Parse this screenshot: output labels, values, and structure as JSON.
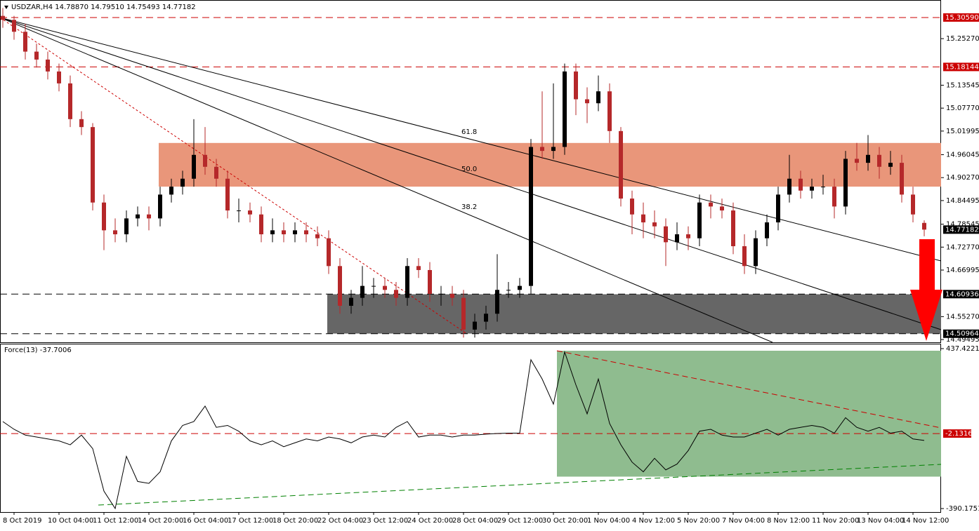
{
  "chart_data": {
    "type": "candlestick",
    "title": "USDZAR,H4  14.78870 14.79510 14.75493 14.77182",
    "colors": {
      "up": "#000000",
      "down": "#b5282a"
    },
    "ylim": [
      14.488,
      15.35
    ],
    "yticks": [
      {
        "value": 15.2527,
        "label": "15.25270"
      },
      15.13545,
      {
        "value": 15.0777,
        "label": "15.07770"
      },
      15.01995,
      14.96045,
      {
        "value": 14.9027,
        "label": "14.90270"
      },
      14.84495,
      14.78545,
      {
        "value": 14.7277,
        "label": "14.72770"
      },
      14.66995,
      {
        "value": 14.5527,
        "label": "14.55270"
      },
      14.49495
    ],
    "levels": [
      {
        "value": 15.3059,
        "label": "15.30590",
        "color": "#cc0000",
        "line": true
      },
      {
        "value": 15.18144,
        "label": "15.18144",
        "color": "#cc0000",
        "line": true
      },
      {
        "value": 14.77182,
        "label": "14.77182",
        "color": "#000000",
        "line": false
      },
      {
        "value": 14.60936,
        "label": "14.60936",
        "color": "#000000",
        "line": true
      },
      {
        "value": 14.50964,
        "label": "14.50964",
        "color": "#000000",
        "line": true
      }
    ],
    "zones": [
      {
        "from": 14.88,
        "to": 14.99,
        "color": "#e9967a"
      },
      {
        "from": 14.51,
        "to": 14.609,
        "color": "#666666"
      }
    ],
    "fib_labels": [
      "61.8",
      "50.0",
      "38.2"
    ],
    "categories": [
      null,
      "8 Oct 2019",
      null,
      null,
      null,
      "10 Oct 04:00",
      null,
      null,
      null,
      "11 Oct 12:00",
      null,
      null,
      null,
      "14 Oct 20:00",
      null,
      null,
      null,
      "16 Oct 04:00",
      null,
      null,
      null,
      "17 Oct 12:00",
      null,
      null,
      null,
      "18 Oct 20:00",
      null,
      null,
      null,
      "22 Oct 04:00",
      null,
      null,
      null,
      "23 Oct 12:00",
      null,
      null,
      null,
      "24 Oct 20:00",
      null,
      null,
      null,
      "28 Oct 04:00",
      null,
      null,
      null,
      "29 Oct 12:00",
      null,
      null,
      null,
      "30 Oct 20:00",
      null,
      null,
      null,
      "1 Nov 04:00",
      null,
      null,
      null,
      "4 Nov 12:00",
      null,
      null,
      null,
      "5 Nov 20:00",
      null,
      null,
      null,
      "7 Nov 04:00",
      null,
      null,
      null,
      "8 Nov 12:00",
      null,
      null,
      null,
      "11 Nov 20:00",
      null,
      null,
      null,
      "13 Nov 04:00",
      null,
      null,
      null,
      "14 Nov 12:00",
      null
    ],
    "candles": [
      [
        15.31,
        15.33,
        15.28,
        15.3
      ],
      [
        15.3,
        15.31,
        15.25,
        15.27
      ],
      [
        15.27,
        15.29,
        15.2,
        15.22
      ],
      [
        15.22,
        15.24,
        15.18,
        15.2
      ],
      [
        15.2,
        15.22,
        15.15,
        15.17
      ],
      [
        15.17,
        15.19,
        15.12,
        15.14
      ],
      [
        15.14,
        15.16,
        15.03,
        15.05
      ],
      [
        15.05,
        15.07,
        15.01,
        15.03
      ],
      [
        15.03,
        15.04,
        14.82,
        14.84
      ],
      [
        14.84,
        14.86,
        14.72,
        14.77
      ],
      [
        14.77,
        14.8,
        14.74,
        14.76
      ],
      [
        14.76,
        14.82,
        14.74,
        14.8
      ],
      [
        14.8,
        14.83,
        14.78,
        14.81
      ],
      [
        14.81,
        14.83,
        14.77,
        14.8
      ],
      [
        14.8,
        14.88,
        14.78,
        14.86
      ],
      [
        14.86,
        14.9,
        14.84,
        14.88
      ],
      [
        14.88,
        14.92,
        14.86,
        14.9
      ],
      [
        14.9,
        15.05,
        14.88,
        14.96
      ],
      [
        14.96,
        15.03,
        14.91,
        14.93
      ],
      [
        14.93,
        14.95,
        14.88,
        14.9
      ],
      [
        14.9,
        14.92,
        14.8,
        14.82
      ],
      [
        14.82,
        14.85,
        14.79,
        14.82
      ],
      [
        14.82,
        14.84,
        14.79,
        14.81
      ],
      [
        14.81,
        14.83,
        14.74,
        14.76
      ],
      [
        14.76,
        14.8,
        14.74,
        14.77
      ],
      [
        14.77,
        14.79,
        14.74,
        14.76
      ],
      [
        14.76,
        14.79,
        14.74,
        14.77
      ],
      [
        14.77,
        14.79,
        14.74,
        14.76
      ],
      [
        14.76,
        14.78,
        14.73,
        14.75
      ],
      [
        14.75,
        14.77,
        14.66,
        14.68
      ],
      [
        14.68,
        14.7,
        14.56,
        14.58
      ],
      [
        14.58,
        14.62,
        14.56,
        14.6
      ],
      [
        14.6,
        14.68,
        14.58,
        14.63
      ],
      [
        14.63,
        14.65,
        14.6,
        14.63
      ],
      [
        14.63,
        14.65,
        14.6,
        14.62
      ],
      [
        14.62,
        14.64,
        14.58,
        14.6
      ],
      [
        14.6,
        14.7,
        14.58,
        14.68
      ],
      [
        14.68,
        14.7,
        14.65,
        14.67
      ],
      [
        14.67,
        14.69,
        14.59,
        14.61
      ],
      [
        14.61,
        14.63,
        14.58,
        14.61
      ],
      [
        14.61,
        14.63,
        14.58,
        14.6
      ],
      [
        14.6,
        14.62,
        14.5,
        14.52
      ],
      [
        14.52,
        14.56,
        14.5,
        14.54
      ],
      [
        14.54,
        14.58,
        14.52,
        14.56
      ],
      [
        14.56,
        14.71,
        14.54,
        14.62
      ],
      [
        14.62,
        14.64,
        14.6,
        14.62
      ],
      [
        14.62,
        14.65,
        14.6,
        14.63
      ],
      [
        14.63,
        15.0,
        14.61,
        14.98
      ],
      [
        14.98,
        15.12,
        14.95,
        14.97
      ],
      [
        14.97,
        15.14,
        14.95,
        14.98
      ],
      [
        14.98,
        15.19,
        14.96,
        15.17
      ],
      [
        15.17,
        15.19,
        15.06,
        15.1
      ],
      [
        15.1,
        15.13,
        15.04,
        15.09
      ],
      [
        15.09,
        15.16,
        15.07,
        15.12
      ],
      [
        15.12,
        15.14,
        14.99,
        15.02
      ],
      [
        15.02,
        15.03,
        14.83,
        14.85
      ],
      [
        14.85,
        14.87,
        14.76,
        14.81
      ],
      [
        14.81,
        14.84,
        14.75,
        14.79
      ],
      [
        14.79,
        14.82,
        14.75,
        14.78
      ],
      [
        14.78,
        14.8,
        14.68,
        14.74
      ],
      [
        14.74,
        14.79,
        14.72,
        14.76
      ],
      [
        14.76,
        14.78,
        14.72,
        14.75
      ],
      [
        14.75,
        14.86,
        14.73,
        14.84
      ],
      [
        14.84,
        14.86,
        14.8,
        14.83
      ],
      [
        14.83,
        14.85,
        14.8,
        14.82
      ],
      [
        14.82,
        14.84,
        14.71,
        14.73
      ],
      [
        14.73,
        14.76,
        14.66,
        14.68
      ],
      [
        14.68,
        14.77,
        14.66,
        14.75
      ],
      [
        14.75,
        14.81,
        14.73,
        14.79
      ],
      [
        14.79,
        14.88,
        14.77,
        14.86
      ],
      [
        14.86,
        14.96,
        14.84,
        14.9
      ],
      [
        14.9,
        14.92,
        14.85,
        14.87
      ],
      [
        14.87,
        14.9,
        14.85,
        14.88
      ],
      [
        14.88,
        14.91,
        14.86,
        14.88
      ],
      [
        14.88,
        14.9,
        14.8,
        14.83
      ],
      [
        14.83,
        14.97,
        14.81,
        14.95
      ],
      [
        14.95,
        14.99,
        14.92,
        14.94
      ],
      [
        14.94,
        15.01,
        14.92,
        14.96
      ],
      [
        14.96,
        14.98,
        14.9,
        14.93
      ],
      [
        14.93,
        14.97,
        14.91,
        14.94
      ],
      [
        14.94,
        14.96,
        14.84,
        14.86
      ],
      [
        14.86,
        14.88,
        14.79,
        14.81
      ],
      [
        14.7887,
        14.7951,
        14.75493,
        14.77182
      ]
    ],
    "indicator": {
      "title": "Force(13) -37.7006",
      "color": "#000000",
      "ylim": [
        -390.1751,
        437.4221
      ],
      "yticks": [
        437.4221,
        -390.1751
      ],
      "level": -2.1316,
      "zone": {
        "from": -225,
        "to": 437.4221,
        "color": "#8fbc8f"
      },
      "values": [
        60,
        20,
        -10,
        -20,
        -30,
        -40,
        -60,
        -10,
        -80,
        -300,
        -390,
        -120,
        -250,
        -260,
        -200,
        -40,
        40,
        60,
        140,
        30,
        40,
        10,
        -40,
        -60,
        -40,
        -70,
        -50,
        -30,
        -40,
        -20,
        -30,
        -50,
        -20,
        -10,
        -20,
        30,
        60,
        -20,
        -10,
        -10,
        -20,
        -10,
        -10,
        -5,
        -2,
        0,
        0,
        380,
        280,
        150,
        420,
        250,
        100,
        280,
        50,
        -60,
        -150,
        -200,
        -130,
        -190,
        -160,
        -90,
        10,
        20,
        -10,
        -20,
        -20,
        0,
        20,
        -10,
        20,
        30,
        40,
        30,
        0,
        80,
        30,
        10,
        30,
        0,
        10,
        -30,
        -37.7006
      ]
    }
  }
}
